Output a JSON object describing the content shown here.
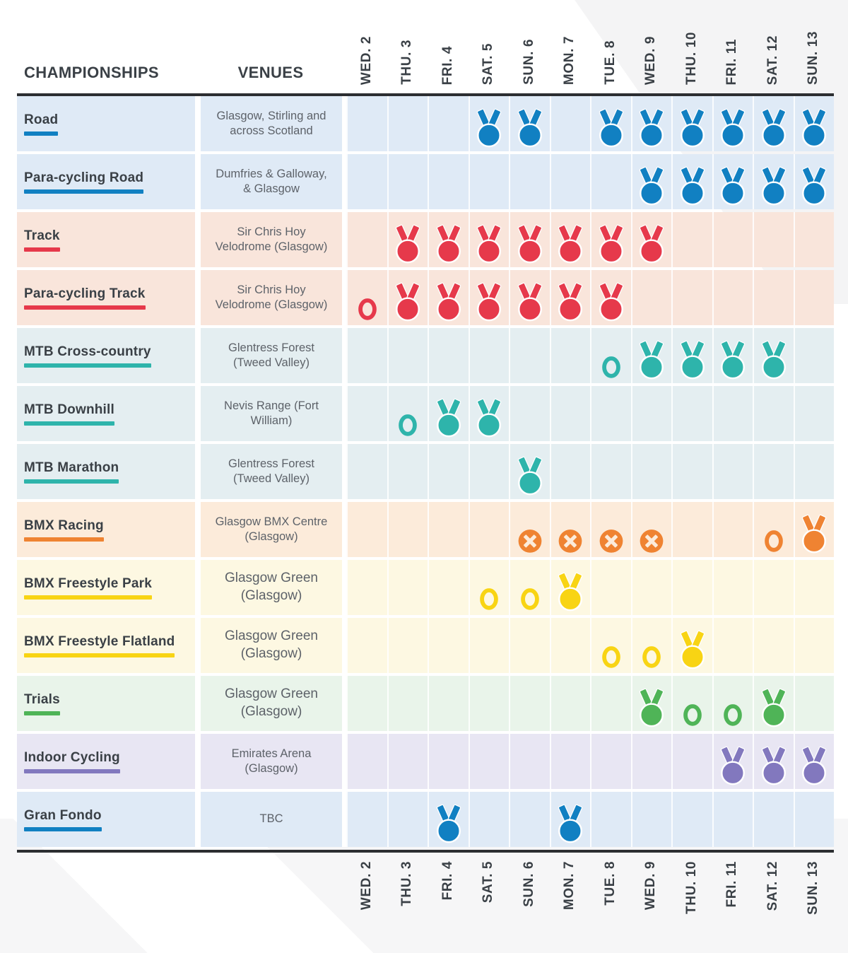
{
  "header": {
    "championships_label": "CHAMPIONSHIPS",
    "venues_label": "VENUES"
  },
  "icons": {
    "medal": "medal-icon",
    "ring": "circle-outline-icon",
    "cross": "crossed-circle-icon"
  },
  "colors": {
    "header_text": "#3a4046",
    "venue_text": "#5d6269",
    "divider": "#2c2e31",
    "blue": "#1180c2",
    "red": "#e6394b",
    "teal": "#2eb4ab",
    "orange": "#ef8332",
    "yellow": "#f8d414",
    "green": "#4fb457",
    "purple": "#8278be",
    "bg_blue": "#dfeaf6",
    "bg_red": "#f9e5db",
    "bg_teal": "#e4eef1",
    "bg_orange": "#fcebda",
    "bg_yellow": "#fdf8e2",
    "bg_green": "#e9f4ea",
    "bg_purple": "#e8e6f3"
  },
  "chart_data": {
    "type": "table",
    "title": "Championships schedule by day (Wed 2 - Sun 13)",
    "columns": [
      "CHAMPIONSHIPS",
      "VENUES",
      "WED. 2",
      "THU. 3",
      "FRI. 4",
      "SAT. 5",
      "SUN. 6",
      "MON. 7",
      "TUE. 8",
      "WED. 9",
      "THU. 10",
      "FRI. 11",
      "SAT. 12",
      "SUN. 13"
    ],
    "days": [
      "WED. 2",
      "THU. 3",
      "FRI. 4",
      "SAT. 5",
      "SUN. 6",
      "MON. 7",
      "TUE. 8",
      "WED. 9",
      "THU. 10",
      "FRI. 11",
      "SAT. 12",
      "SUN. 13"
    ],
    "rows": [
      {
        "championship": "Road",
        "venue": "Glasgow, Stirling and across Scotland",
        "venue_size": "md",
        "accent": "#1180c2",
        "bg": "#dfeaf6",
        "schedule": [
          "",
          "",
          "",
          "medal",
          "medal",
          "",
          "medal",
          "medal",
          "medal",
          "medal",
          "medal",
          "medal"
        ]
      },
      {
        "championship": "Para-cycling Road",
        "venue": "Dumfries & Galloway, & Glasgow",
        "venue_size": "md",
        "accent": "#1180c2",
        "bg": "#dfeaf6",
        "schedule": [
          "",
          "",
          "",
          "",
          "",
          "",
          "",
          "medal",
          "medal",
          "medal",
          "medal",
          "medal"
        ]
      },
      {
        "championship": "Track",
        "venue": "Sir Chris Hoy Velodrome (Glasgow)",
        "venue_size": "md",
        "accent": "#e6394b",
        "bg": "#f9e5db",
        "schedule": [
          "",
          "medal",
          "medal",
          "medal",
          "medal",
          "medal",
          "medal",
          "medal",
          "",
          "",
          "",
          ""
        ]
      },
      {
        "championship": "Para-cycling Track",
        "venue": "Sir Chris Hoy Velodrome (Glasgow)",
        "venue_size": "md",
        "accent": "#e6394b",
        "bg": "#f9e5db",
        "schedule": [
          "ring",
          "medal",
          "medal",
          "medal",
          "medal",
          "medal",
          "medal",
          "",
          "",
          "",
          "",
          ""
        ]
      },
      {
        "championship": "MTB Cross-country",
        "venue": "Glentress Forest (Tweed Valley)",
        "venue_size": "md",
        "accent": "#2eb4ab",
        "bg": "#e4eef1",
        "schedule": [
          "",
          "",
          "",
          "",
          "",
          "",
          "ring",
          "medal",
          "medal",
          "medal",
          "medal",
          ""
        ]
      },
      {
        "championship": "MTB Downhill",
        "venue": "Nevis Range (Fort William)",
        "venue_size": "md",
        "accent": "#2eb4ab",
        "bg": "#e4eef1",
        "schedule": [
          "",
          "ring",
          "medal",
          "medal",
          "",
          "",
          "",
          "",
          "",
          "",
          "",
          ""
        ]
      },
      {
        "championship": "MTB Marathon",
        "venue": "Glentress Forest (Tweed Valley)",
        "venue_size": "md",
        "accent": "#2eb4ab",
        "bg": "#e4eef1",
        "schedule": [
          "",
          "",
          "",
          "",
          "medal",
          "",
          "",
          "",
          "",
          "",
          "",
          ""
        ]
      },
      {
        "championship": "BMX Racing",
        "venue": "Glasgow BMX Centre (Glasgow)",
        "venue_size": "md",
        "accent": "#ef8332",
        "bg": "#fcebda",
        "schedule": [
          "",
          "",
          "",
          "",
          "cross",
          "cross",
          "cross",
          "cross",
          "",
          "",
          "ring",
          "medal"
        ]
      },
      {
        "championship": "BMX Freestyle Park",
        "venue": "Glasgow Green (Glasgow)",
        "venue_size": "lg",
        "accent": "#f8d414",
        "bg": "#fdf8e2",
        "schedule": [
          "",
          "",
          "",
          "ring",
          "ring",
          "medal",
          "",
          "",
          "",
          "",
          "",
          ""
        ]
      },
      {
        "championship": "BMX Freestyle Flatland",
        "venue": "Glasgow Green (Glasgow)",
        "venue_size": "lg",
        "accent": "#f8d414",
        "bg": "#fdf8e2",
        "schedule": [
          "",
          "",
          "",
          "",
          "",
          "",
          "ring",
          "ring",
          "medal",
          "",
          "",
          ""
        ]
      },
      {
        "championship": "Trials",
        "venue": "Glasgow Green (Glasgow)",
        "venue_size": "lg",
        "accent": "#4fb457",
        "bg": "#e9f4ea",
        "schedule": [
          "",
          "",
          "",
          "",
          "",
          "",
          "",
          "medal",
          "ring",
          "ring",
          "medal",
          ""
        ]
      },
      {
        "championship": "Indoor Cycling",
        "venue": "Emirates Arena (Glasgow)",
        "venue_size": "md",
        "accent": "#8278be",
        "bg": "#e8e6f3",
        "schedule": [
          "",
          "",
          "",
          "",
          "",
          "",
          "",
          "",
          "",
          "medal",
          "medal",
          "medal"
        ]
      },
      {
        "championship": "Gran Fondo",
        "venue": "TBC",
        "venue_size": "md",
        "accent": "#1180c2",
        "bg": "#dfeaf6",
        "schedule": [
          "",
          "",
          "medal",
          "",
          "",
          "medal",
          "",
          "",
          "",
          "",
          "",
          ""
        ]
      }
    ]
  }
}
